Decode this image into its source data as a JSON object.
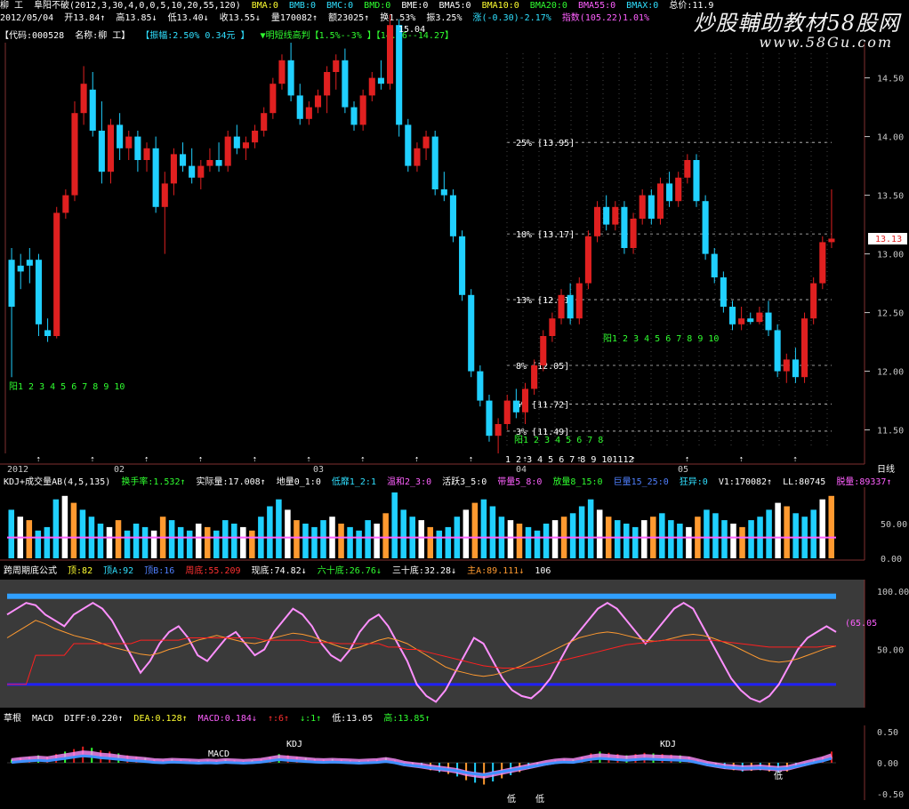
{
  "header": {
    "line1": {
      "stock_name": "柳  工",
      "indicator": "阜阳不破(2012,3,30,4,0,0,5,10,20,55,120)",
      "bma": [
        "BMA:0",
        "BMB:0",
        "BMC:0",
        "BMD:0",
        "BME:0",
        "BMA5:0",
        "BMA10:0",
        "BMA20:0",
        "BMA55:0",
        "BMAX:0"
      ],
      "tail": "总价:11.9"
    },
    "line2": {
      "date": "2012/05/04",
      "open": "开13.84↑",
      "high": "高13.85↓",
      "low": "低13.40↓",
      "close": "收13.55↓",
      "volume": "量170082↑",
      "amount": "额23025↑",
      "turnover": "换1.53%",
      "amplitude": "振3.25%",
      "change": "涨(-0.30)-2.17%",
      "index": "指数(105.22)1.01%"
    },
    "line3": {
      "code": "【代码:000528",
      "name": "名称:柳  工】",
      "amp": "【振幅:2.50% 0.34元 】",
      "predict": "▼明短线高判【1.5%--3% 】【14.06--14.27】"
    },
    "watermark": "炒股輔助教材58股网",
    "watermark_url": "www.58Gu.com"
  },
  "panels": {
    "vol_title": [
      "KDJ+成交量AB(4,5,135)",
      "换手率:1.532↑",
      "实际量:17.008↑",
      "地量0_1:0",
      "低靡1_2:1",
      "温和2_3:0",
      "活跃3_5:0",
      "带量5_8:0",
      "放量8_15:0",
      "巨量15_25:0",
      "狂异:0",
      "V1:170082↑",
      "LL:80745",
      "脱量:89337↑"
    ],
    "cycle_title": [
      "跨周期底公式",
      "顶:82",
      "顶A:92",
      "顶B:16",
      "周底:55.209",
      "现底:74.82↓",
      "六十底:26.76↓",
      "三十底:32.28↓",
      "主A:89.111↓",
      "106"
    ],
    "macd_title": [
      "草根",
      "MACD",
      "DIFF:0.220↑",
      "DEA:0.128↑",
      "MACD:0.184↓",
      "↑:6↑",
      "↓:1↑",
      "低:13.05",
      "高:13.85↑"
    ]
  },
  "labels": {
    "yang_seq1": "阳1 2 3 4 5 6 7 8 9 10",
    "yang_seq2": "阳1 2 3 4 5 6 7 8 9 10",
    "yang_seq3": "阳1 2 3 4 5 6 7 8",
    "day_seq": "1 2 3 4 5 6 7 8 9 101112",
    "price_tag": "13.13",
    "peak_label": "15.04",
    "period_label": "日线",
    "macd_marks": [
      "MACD",
      "KDJ",
      "KDJ",
      "低",
      "低",
      "低"
    ],
    "cycle_side": "(65.05"
  },
  "colors": {
    "up": "#e02020",
    "down": "#20d0ff",
    "bg": "#000000",
    "grid": "#808080"
  },
  "chart_data": [
    {
      "type": "candlestick",
      "title": "阜阳不破",
      "x_labels": [
        "2012",
        "02",
        "03",
        "04",
        "05"
      ],
      "ylim": [
        11.3,
        14.8
      ],
      "y_ticks": [
        11.5,
        12.0,
        12.5,
        13.0,
        13.5,
        14.0,
        14.5
      ],
      "candles": [
        [
          12.95,
          13.05,
          11.95,
          12.55
        ],
        [
          12.9,
          13.0,
          12.7,
          12.85
        ],
        [
          12.95,
          13.05,
          12.75,
          12.9
        ],
        [
          12.95,
          13.0,
          12.3,
          12.4
        ],
        [
          12.35,
          12.45,
          12.25,
          12.3
        ],
        [
          12.3,
          13.4,
          12.28,
          13.35
        ],
        [
          13.35,
          13.55,
          13.3,
          13.5
        ],
        [
          13.5,
          14.3,
          13.45,
          14.2
        ],
        [
          14.2,
          14.6,
          14.1,
          14.45
        ],
        [
          14.4,
          14.55,
          14.0,
          14.05
        ],
        [
          14.05,
          14.3,
          13.6,
          13.7
        ],
        [
          13.7,
          14.15,
          13.6,
          14.1
        ],
        [
          14.1,
          14.2,
          13.8,
          13.9
        ],
        [
          13.9,
          14.05,
          13.8,
          14.0
        ],
        [
          14.0,
          14.05,
          13.7,
          13.8
        ],
        [
          13.8,
          13.95,
          13.7,
          13.9
        ],
        [
          13.9,
          14.0,
          13.35,
          13.4
        ],
        [
          13.4,
          13.7,
          13.0,
          13.6
        ],
        [
          13.6,
          13.9,
          13.5,
          13.85
        ],
        [
          13.85,
          13.95,
          13.7,
          13.75
        ],
        [
          13.75,
          13.9,
          13.6,
          13.65
        ],
        [
          13.65,
          13.8,
          13.55,
          13.75
        ],
        [
          13.75,
          13.9,
          13.7,
          13.8
        ],
        [
          13.8,
          13.95,
          13.7,
          13.75
        ],
        [
          13.75,
          14.05,
          13.7,
          14.0
        ],
        [
          14.0,
          14.1,
          13.85,
          13.9
        ],
        [
          13.9,
          14.0,
          13.8,
          13.95
        ],
        [
          13.95,
          14.1,
          13.9,
          14.05
        ],
        [
          14.05,
          14.25,
          14.0,
          14.2
        ],
        [
          14.2,
          14.5,
          14.15,
          14.45
        ],
        [
          14.45,
          14.7,
          14.4,
          14.65
        ],
        [
          14.65,
          14.8,
          14.3,
          14.35
        ],
        [
          14.35,
          14.45,
          14.1,
          14.15
        ],
        [
          14.15,
          14.3,
          14.1,
          14.25
        ],
        [
          14.25,
          14.4,
          14.2,
          14.35
        ],
        [
          14.35,
          14.6,
          14.2,
          14.55
        ],
        [
          14.55,
          14.7,
          14.4,
          14.65
        ],
        [
          14.65,
          14.75,
          14.2,
          14.25
        ],
        [
          14.25,
          14.3,
          14.05,
          14.1
        ],
        [
          14.1,
          14.4,
          14.05,
          14.35
        ],
        [
          14.35,
          14.55,
          14.3,
          14.5
        ],
        [
          14.5,
          14.65,
          14.4,
          14.45
        ],
        [
          14.45,
          15.04,
          14.4,
          14.95
        ],
        [
          14.95,
          15.0,
          14.0,
          14.1
        ],
        [
          14.1,
          14.15,
          13.7,
          13.75
        ],
        [
          13.75,
          13.95,
          13.7,
          13.9
        ],
        [
          13.9,
          14.05,
          13.8,
          14.0
        ],
        [
          14.0,
          14.05,
          13.5,
          13.55
        ],
        [
          13.55,
          13.7,
          13.45,
          13.5
        ],
        [
          13.5,
          13.55,
          13.1,
          13.15
        ],
        [
          13.15,
          13.2,
          12.6,
          12.65
        ],
        [
          12.65,
          12.7,
          11.95,
          12.0
        ],
        [
          12.0,
          12.05,
          11.7,
          11.75
        ],
        [
          11.75,
          11.8,
          11.4,
          11.45
        ],
        [
          11.45,
          11.6,
          11.3,
          11.55
        ],
        [
          11.55,
          11.8,
          11.5,
          11.75
        ],
        [
          11.75,
          11.85,
          11.6,
          11.65
        ],
        [
          11.65,
          11.9,
          11.55,
          11.85
        ],
        [
          11.85,
          12.1,
          11.8,
          12.05
        ],
        [
          12.05,
          12.35,
          12.0,
          12.3
        ],
        [
          12.3,
          12.5,
          12.25,
          12.45
        ],
        [
          12.45,
          12.7,
          12.4,
          12.65
        ],
        [
          12.65,
          12.75,
          12.4,
          12.45
        ],
        [
          12.45,
          12.8,
          12.4,
          12.75
        ],
        [
          12.75,
          13.2,
          12.7,
          13.15
        ],
        [
          13.15,
          13.45,
          13.1,
          13.4
        ],
        [
          13.4,
          13.5,
          13.2,
          13.25
        ],
        [
          13.25,
          13.45,
          13.2,
          13.4
        ],
        [
          13.4,
          13.45,
          13.0,
          13.05
        ],
        [
          13.05,
          13.35,
          13.0,
          13.3
        ],
        [
          13.3,
          13.55,
          13.25,
          13.5
        ],
        [
          13.5,
          13.55,
          13.25,
          13.3
        ],
        [
          13.3,
          13.65,
          13.25,
          13.6
        ],
        [
          13.6,
          13.7,
          13.4,
          13.45
        ],
        [
          13.45,
          13.7,
          13.4,
          13.65
        ],
        [
          13.65,
          13.85,
          13.6,
          13.8
        ],
        [
          13.8,
          13.85,
          13.4,
          13.45
        ],
        [
          13.45,
          13.5,
          12.95,
          13.0
        ],
        [
          13.0,
          13.05,
          12.75,
          12.8
        ],
        [
          12.8,
          12.85,
          12.5,
          12.55
        ],
        [
          12.55,
          12.6,
          12.35,
          12.4
        ],
        [
          12.4,
          12.55,
          12.35,
          12.45
        ],
        [
          12.45,
          12.5,
          12.4,
          12.42
        ],
        [
          12.42,
          12.55,
          12.4,
          12.5
        ],
        [
          12.5,
          12.6,
          12.3,
          12.35
        ],
        [
          12.35,
          12.4,
          11.95,
          12.0
        ],
        [
          12.0,
          12.15,
          11.9,
          12.1
        ],
        [
          12.1,
          12.2,
          11.9,
          11.95
        ],
        [
          11.95,
          12.5,
          11.9,
          12.45
        ],
        [
          12.45,
          12.8,
          12.4,
          12.75
        ],
        [
          12.75,
          13.15,
          12.7,
          13.1
        ],
        [
          13.1,
          13.55,
          13.05,
          13.13
        ]
      ],
      "levels": [
        {
          "label": "25% [13.95]",
          "value": 13.95
        },
        {
          "label": "18% [13.17]",
          "value": 13.17
        },
        {
          "label": "13% [12.61]",
          "value": 12.61
        },
        {
          "label": "8% [12.05]",
          "value": 12.05
        },
        {
          "label": "5% [11.72]",
          "value": 11.72
        },
        {
          "label": "3% [11.49]",
          "value": 11.49
        }
      ]
    },
    {
      "type": "bar",
      "title": "KDJ+成交量AB",
      "ylim": [
        0,
        100
      ],
      "y_ticks": [
        0,
        50
      ],
      "values": [
        70,
        60,
        55,
        40,
        45,
        85,
        90,
        80,
        70,
        60,
        50,
        45,
        55,
        40,
        50,
        45,
        40,
        60,
        55,
        45,
        40,
        50,
        45,
        40,
        55,
        50,
        45,
        40,
        60,
        75,
        85,
        70,
        55,
        50,
        45,
        55,
        60,
        50,
        45,
        40,
        55,
        50,
        65,
        95,
        70,
        60,
        55,
        45,
        40,
        45,
        60,
        70,
        80,
        85,
        75,
        60,
        55,
        50,
        45,
        40,
        50,
        55,
        60,
        65,
        75,
        85,
        70,
        60,
        55,
        50,
        45,
        55,
        60,
        65,
        55,
        50,
        45,
        60,
        70,
        65,
        55,
        50,
        45,
        55,
        60,
        70,
        80,
        75,
        65,
        60,
        70,
        85,
        90
      ]
    },
    {
      "type": "line",
      "title": "跨周期底公式",
      "ylim": [
        0,
        110
      ],
      "y_ticks": [
        50,
        100
      ],
      "series": [
        {
          "name": "现底",
          "values": [
            80,
            85,
            90,
            88,
            80,
            75,
            70,
            80,
            85,
            90,
            85,
            75,
            60,
            45,
            30,
            40,
            55,
            65,
            70,
            60,
            45,
            40,
            50,
            60,
            65,
            55,
            45,
            50,
            65,
            75,
            85,
            80,
            70,
            55,
            45,
            40,
            50,
            65,
            75,
            80,
            70,
            55,
            40,
            20,
            10,
            5,
            15,
            30,
            45,
            60,
            55,
            40,
            25,
            15,
            10,
            8,
            15,
            25,
            40,
            55,
            65,
            75,
            85,
            90,
            85,
            75,
            65,
            55,
            65,
            75,
            85,
            90,
            85,
            70,
            55,
            40,
            25,
            15,
            8,
            5,
            10,
            20,
            35,
            50,
            60,
            65,
            70,
            65
          ]
        },
        {
          "name": "三十底",
          "values": [
            60,
            65,
            70,
            75,
            72,
            68,
            65,
            62,
            60,
            58,
            55,
            52,
            50,
            48,
            46,
            45,
            47,
            50,
            52,
            55,
            58,
            60,
            62,
            60,
            58,
            56,
            55,
            57,
            60,
            62,
            64,
            63,
            61,
            58,
            55,
            52,
            50,
            52,
            55,
            58,
            60,
            58,
            55,
            50,
            45,
            40,
            35,
            32,
            30,
            28,
            27,
            28,
            30,
            33,
            36,
            40,
            44,
            48,
            52,
            56,
            60,
            62,
            64,
            65,
            64,
            62,
            60,
            58,
            57,
            58,
            60,
            62,
            63,
            62,
            60,
            57,
            54,
            50,
            46,
            42,
            40,
            39,
            40,
            42,
            45,
            48,
            51,
            53
          ]
        },
        {
          "name": "六十底",
          "values": [
            20,
            20,
            20,
            45,
            45,
            45,
            45,
            55,
            55,
            55,
            55,
            55,
            55,
            55,
            58,
            58,
            58,
            58,
            58,
            60,
            60,
            60,
            60,
            60,
            60,
            60,
            60,
            58,
            58,
            58,
            58,
            58,
            56,
            56,
            56,
            55,
            55,
            55,
            55,
            55,
            52,
            52,
            50,
            50,
            48,
            46,
            44,
            42,
            40,
            38,
            36,
            35,
            34,
            34,
            34,
            35,
            36,
            38,
            40,
            42,
            44,
            46,
            48,
            50,
            52,
            54,
            55,
            56,
            57,
            58,
            58,
            58,
            58,
            58,
            58,
            57,
            56,
            55,
            54,
            53,
            52,
            52,
            52,
            52,
            52,
            52,
            53,
            53
          ]
        }
      ]
    },
    {
      "type": "bar",
      "title": "MACD",
      "ylim": [
        -0.6,
        0.6
      ],
      "y_ticks": [
        0.5,
        0.0,
        -0.5
      ],
      "values": [
        0.05,
        0.08,
        0.1,
        0.12,
        0.1,
        0.14,
        0.18,
        0.22,
        0.26,
        0.24,
        0.2,
        0.18,
        0.15,
        0.12,
        0.1,
        0.08,
        0.05,
        0.04,
        0.06,
        0.05,
        0.04,
        0.03,
        0.04,
        0.03,
        0.05,
        0.04,
        0.03,
        0.04,
        0.06,
        0.1,
        0.14,
        0.12,
        0.1,
        0.08,
        0.06,
        0.05,
        0.06,
        0.05,
        0.04,
        0.03,
        0.04,
        0.05,
        0.08,
        0.04,
        -0.02,
        -0.05,
        -0.08,
        -0.12,
        -0.15,
        -0.18,
        -0.22,
        -0.28,
        -0.32,
        -0.35,
        -0.3,
        -0.25,
        -0.2,
        -0.15,
        -0.1,
        -0.05,
        0.0,
        0.04,
        0.06,
        0.05,
        0.1,
        0.15,
        0.18,
        0.16,
        0.14,
        0.12,
        0.14,
        0.16,
        0.15,
        0.14,
        0.13,
        0.12,
        0.1,
        0.04,
        -0.02,
        -0.06,
        -0.1,
        -0.12,
        -0.14,
        -0.13,
        -0.12,
        -0.14,
        -0.16,
        -0.14,
        -0.08,
        -0.02,
        0.04,
        0.1,
        0.18
      ]
    }
  ]
}
